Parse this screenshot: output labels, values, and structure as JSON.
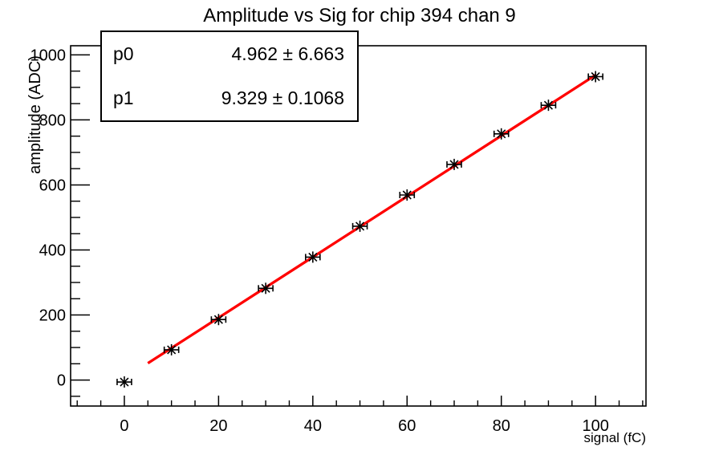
{
  "canvas": {
    "background": "#ffffff",
    "frame_color": "#000000"
  },
  "chart_data": {
    "type": "scatter",
    "title": "Amplitude vs Sig for chip 394 chan 9",
    "xlabel": "signal (fC)",
    "ylabel": "amplitude (ADC)",
    "x": [
      0,
      10,
      20,
      30,
      40,
      50,
      60,
      70,
      80,
      90,
      100
    ],
    "y": [
      -6,
      93,
      186,
      282,
      378,
      473,
      569,
      663,
      757,
      845,
      933
    ],
    "x_error": 1.5,
    "marker": "asterisk",
    "marker_color": "#000000",
    "xlim": [
      -11.4,
      110.7
    ],
    "ylim": [
      -80,
      1028
    ],
    "x_ticks": [
      0,
      20,
      40,
      60,
      80,
      100
    ],
    "y_ticks": [
      0,
      200,
      400,
      600,
      800,
      1000
    ],
    "x_minor_step": 5,
    "y_minor_step": 50,
    "grid": false,
    "legend": "none",
    "fit": {
      "type": "linear",
      "p0": 4.962,
      "p1": 9.329,
      "x_range": [
        5,
        100
      ],
      "color": "#ff0000"
    }
  },
  "stats": {
    "rows": [
      {
        "label": "p0",
        "value": "4.962 ± 6.663"
      },
      {
        "label": "p1",
        "value": "9.329 ± 0.1068"
      }
    ]
  }
}
